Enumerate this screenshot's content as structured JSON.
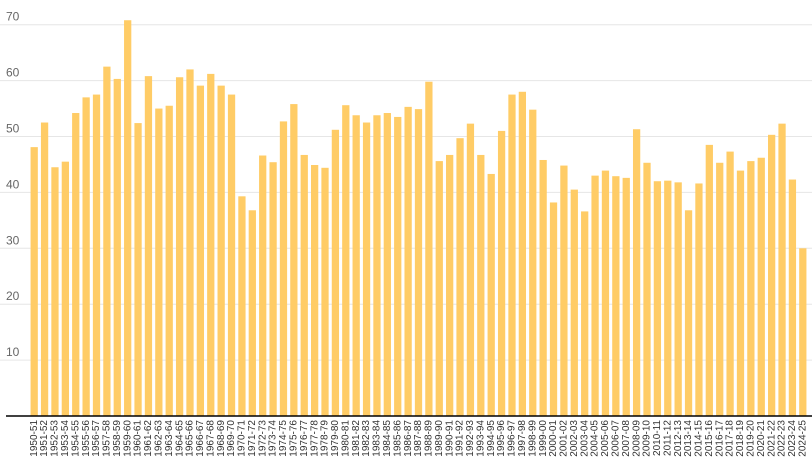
{
  "colors": {
    "bar": "#FFCC66",
    "grid": "#E6E6E6",
    "axis": "#000000"
  },
  "chart_data": {
    "type": "bar",
    "title": "",
    "xlabel": "",
    "ylabel": "",
    "ylim": [
      0,
      70
    ],
    "yticks": [
      10,
      20,
      30,
      40,
      50,
      60,
      70
    ],
    "grid": true,
    "categories": [
      "1950-51",
      "1951-52",
      "1952-53",
      "1953-54",
      "1954-55",
      "1955-56",
      "1956-57",
      "1957-58",
      "1958-59",
      "1959-60",
      "1960-61",
      "1961-62",
      "1962-63",
      "1963-64",
      "1964-65",
      "1965-66",
      "1966-67",
      "1967-68",
      "1968-69",
      "1969-70",
      "1970-71",
      "1971-72",
      "1972-73",
      "1973-74",
      "1974-75",
      "1975-76",
      "1976-77",
      "1977-78",
      "1978-79",
      "1979-80",
      "1980-81",
      "1981-82",
      "1982-83",
      "1983-84",
      "1984-85",
      "1985-86",
      "1986-87",
      "1987-88",
      "1988-89",
      "1989-90",
      "1990-91",
      "1991-92",
      "1992-93",
      "1993-94",
      "1994-95",
      "1995-96",
      "1996-97",
      "1997-98",
      "1998-99",
      "1999-00",
      "2000-01",
      "2001-02",
      "2002-03",
      "2003-04",
      "2004-05",
      "2005-06",
      "2006-07",
      "2007-08",
      "2008-09",
      "2009-10",
      "2010-11",
      "2011-12",
      "2012-13",
      "2013-14",
      "2014-15",
      "2015-16",
      "2016-17",
      "2017-18",
      "2018-19",
      "2019-20",
      "2020-21",
      "2021-22",
      "2022-23",
      "2023-24",
      "2024-25"
    ],
    "values": [
      48.1,
      52.5,
      44.5,
      45.5,
      54.2,
      57.0,
      57.5,
      62.5,
      60.3,
      70.8,
      52.4,
      60.8,
      55.0,
      55.5,
      60.6,
      62.0,
      59.1,
      61.2,
      59.1,
      57.5,
      39.3,
      36.8,
      46.6,
      45.4,
      52.7,
      55.8,
      46.7,
      44.9,
      44.4,
      51.2,
      55.6,
      53.8,
      52.5,
      53.8,
      54.2,
      53.5,
      55.3,
      54.9,
      59.8,
      45.6,
      46.7,
      49.7,
      52.3,
      46.7,
      43.3,
      51.0,
      57.5,
      58.0,
      54.8,
      45.8,
      38.2,
      44.8,
      40.5,
      36.6,
      43.0,
      43.9,
      42.9,
      42.6,
      51.3,
      45.3,
      42.0,
      42.1,
      41.8,
      36.8,
      41.6,
      48.5,
      45.3,
      47.3,
      43.9,
      45.6,
      46.2,
      50.3,
      52.3,
      42.3,
      30.0
    ]
  }
}
